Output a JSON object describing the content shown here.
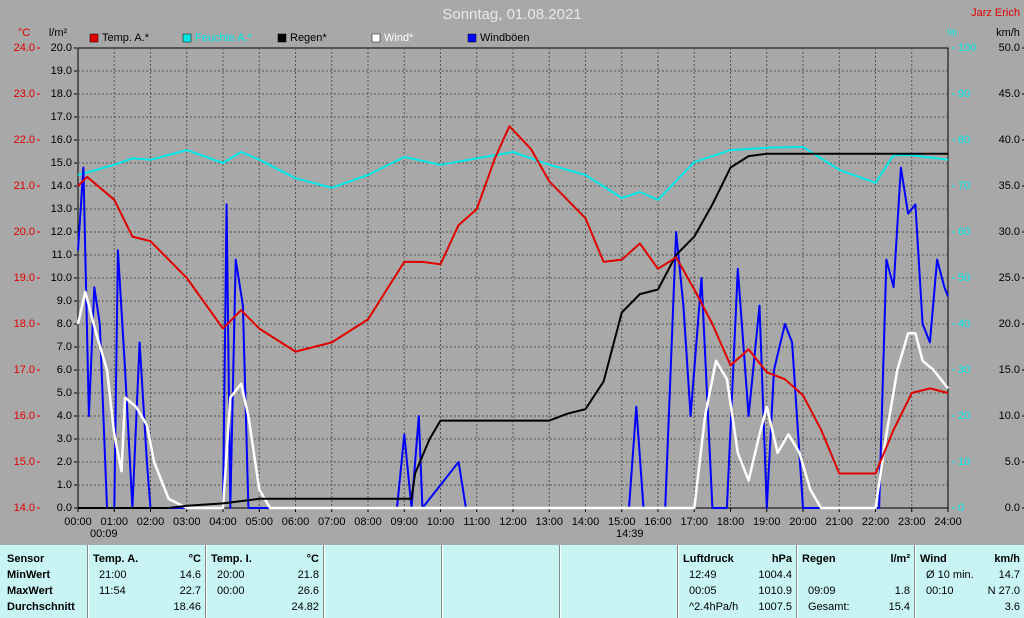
{
  "chart_data": {
    "type": "line",
    "title": "Sonntag, 01.08.2021",
    "author": "Jarz Erich",
    "y_unit": "°C",
    "y3_unit": "l/m²",
    "y2_unit": "%",
    "y4_unit": "km/h",
    "annotations": [
      "00:09",
      "14:39"
    ],
    "xlim": [
      0,
      24
    ],
    "xticks": [
      {
        "value": 0,
        "label": "00:00"
      },
      {
        "value": 1,
        "label": "01:00"
      },
      {
        "value": 2,
        "label": "02:00"
      },
      {
        "value": 3,
        "label": "03:00"
      },
      {
        "value": 4,
        "label": "04:00"
      },
      {
        "value": 5,
        "label": "05:00"
      },
      {
        "value": 6,
        "label": "06:00"
      },
      {
        "value": 7,
        "label": "07:00"
      },
      {
        "value": 8,
        "label": "08:00"
      },
      {
        "value": 9,
        "label": "09:00"
      },
      {
        "value": 10,
        "label": "10:00"
      },
      {
        "value": 11,
        "label": "11:00"
      },
      {
        "value": 12,
        "label": "12:00"
      },
      {
        "value": 13,
        "label": "13:00"
      },
      {
        "value": 14,
        "label": "14:00"
      },
      {
        "value": 15,
        "label": "15:00"
      },
      {
        "value": 16,
        "label": "16:00"
      },
      {
        "value": 17,
        "label": "17:00"
      },
      {
        "value": 18,
        "label": "18:00"
      },
      {
        "value": 19,
        "label": "19:00"
      },
      {
        "value": 20,
        "label": "20:00"
      },
      {
        "value": 21,
        "label": "21:00"
      },
      {
        "value": 22,
        "label": "22:00"
      },
      {
        "value": 23,
        "label": "23:00"
      },
      {
        "value": 24,
        "label": "24:00"
      }
    ],
    "ylim": [
      14,
      24
    ],
    "yticks": [
      {
        "value": 14,
        "label": "14.0"
      },
      {
        "value": 15,
        "label": "15.0"
      },
      {
        "value": 16,
        "label": "16.0"
      },
      {
        "value": 17,
        "label": "17.0"
      },
      {
        "value": 18,
        "label": "18.0"
      },
      {
        "value": 19,
        "label": "19.0"
      },
      {
        "value": 20,
        "label": "20.0"
      },
      {
        "value": 21,
        "label": "21.0"
      },
      {
        "value": 22,
        "label": "22.0"
      },
      {
        "value": 23,
        "label": "23.0"
      },
      {
        "value": 24,
        "label": "24.0"
      }
    ],
    "y3lim": [
      0,
      20
    ],
    "y3ticks": [
      {
        "value": 0,
        "label": "0.0"
      },
      {
        "value": 1,
        "label": "1.0"
      },
      {
        "value": 2,
        "label": "2.0"
      },
      {
        "value": 3,
        "label": "3.0"
      },
      {
        "value": 4,
        "label": "4.0"
      },
      {
        "value": 5,
        "label": "5.0"
      },
      {
        "value": 6,
        "label": "6.0"
      },
      {
        "value": 7,
        "label": "7.0"
      },
      {
        "value": 8,
        "label": "8.0"
      },
      {
        "value": 9,
        "label": "9.0"
      },
      {
        "value": 10,
        "label": "10.0"
      },
      {
        "value": 11,
        "label": "11.0"
      },
      {
        "value": 12,
        "label": "12.0"
      },
      {
        "value": 13,
        "label": "13.0"
      },
      {
        "value": 14,
        "label": "14.0"
      },
      {
        "value": 15,
        "label": "15.0"
      },
      {
        "value": 16,
        "label": "16.0"
      },
      {
        "value": 17,
        "label": "17.0"
      },
      {
        "value": 18,
        "label": "18.0"
      },
      {
        "value": 19,
        "label": "19.0"
      },
      {
        "value": 20,
        "label": "20.0"
      }
    ],
    "y2lim": [
      0,
      100
    ],
    "y2ticks": [
      0,
      10,
      20,
      30,
      40,
      50,
      60,
      70,
      80,
      90,
      100
    ],
    "y4lim": [
      0,
      50
    ],
    "y4ticks": [
      {
        "value": 0,
        "label": "0.0"
      },
      {
        "value": 5,
        "label": "5.0"
      },
      {
        "value": 10,
        "label": "10.0"
      },
      {
        "value": 15,
        "label": "15.0"
      },
      {
        "value": 20,
        "label": "20.0"
      },
      {
        "value": 25,
        "label": "25.0"
      },
      {
        "value": 30,
        "label": "30.0"
      },
      {
        "value": 35,
        "label": "35.0"
      },
      {
        "value": 40,
        "label": "40.0"
      },
      {
        "value": 45,
        "label": "45.0"
      },
      {
        "value": 50,
        "label": "50.0"
      }
    ],
    "grid": true,
    "series": [
      {
        "name": "Temp. A.*",
        "color": "#e00000",
        "axis": "y",
        "x": [
          0,
          0.25,
          1,
          1.5,
          2,
          3,
          4,
          4.5,
          5,
          6,
          7,
          8,
          9,
          9.5,
          10,
          10.5,
          11,
          11.5,
          11.9,
          12.5,
          13,
          14,
          14.5,
          15,
          15.5,
          16,
          16.5,
          17,
          17.5,
          18,
          18.5,
          19,
          19.5,
          20,
          20.5,
          21,
          22,
          22.5,
          23,
          23.5,
          24
        ],
        "values": [
          21.0,
          21.2,
          20.7,
          19.9,
          19.8,
          19.0,
          17.9,
          18.3,
          17.9,
          17.4,
          17.6,
          18.1,
          19.35,
          19.35,
          19.3,
          20.15,
          20.5,
          21.6,
          22.3,
          21.8,
          21.1,
          20.3,
          19.35,
          19.4,
          19.75,
          19.2,
          19.45,
          18.75,
          18.0,
          17.1,
          17.45,
          16.95,
          16.8,
          16.45,
          15.7,
          14.75,
          14.75,
          15.7,
          16.5,
          16.6,
          16.5
        ]
      },
      {
        "name": "Feuchte A.*",
        "color": "#00e8e8",
        "axis": "y2",
        "x": [
          0,
          1,
          1.5,
          2,
          3,
          4,
          4.5,
          5,
          6,
          7,
          8,
          9,
          10,
          11,
          12,
          13,
          14,
          15,
          15.5,
          16,
          17,
          18,
          19,
          20,
          21,
          22,
          22.5,
          23,
          24
        ],
        "values": [
          72.4,
          74.6,
          76,
          75.7,
          77.8,
          75,
          77.4,
          75.7,
          71.7,
          69.6,
          72.4,
          76.3,
          74.6,
          76,
          77.4,
          74.6,
          72.4,
          67.4,
          68.7,
          67,
          75.2,
          77.8,
          78.3,
          78.5,
          73.5,
          70.7,
          76.7,
          76.7,
          75.7
        ]
      },
      {
        "name": "Regen*",
        "color": "#000000",
        "axis": "y3",
        "x": [
          0,
          2.5,
          3,
          4,
          5,
          9.2,
          9.3,
          9.7,
          10,
          13,
          13.5,
          14,
          14.5,
          15,
          15.5,
          16,
          16.5,
          17,
          17.5,
          18,
          18.5,
          19,
          24
        ],
        "values": [
          0,
          0,
          0.1,
          0.2,
          0.4,
          0.4,
          1.5,
          3.0,
          3.8,
          3.8,
          4.1,
          4.3,
          5.5,
          8.5,
          9.3,
          9.5,
          11.0,
          11.8,
          13.2,
          14.8,
          15.3,
          15.4,
          15.4
        ]
      },
      {
        "name": "Wind*",
        "color": "#ffffff",
        "axis": "y4",
        "x": [
          0,
          0.2,
          0.5,
          0.8,
          1,
          1.2,
          1.3,
          1.6,
          1.9,
          2.1,
          2.5,
          3,
          4,
          4.2,
          4.5,
          4.7,
          5,
          5.3,
          17,
          17.3,
          17.6,
          17.9,
          18.2,
          18.5,
          18.8,
          19,
          19.3,
          19.6,
          19.9,
          20.2,
          20.5,
          22,
          22.3,
          22.6,
          22.9,
          23.1,
          23.3,
          23.6,
          24
        ],
        "values": [
          20,
          23.5,
          19,
          15,
          8,
          4,
          12,
          11,
          9,
          5,
          1,
          0,
          0,
          12,
          13.5,
          10,
          2,
          0,
          0,
          10,
          16,
          14,
          6,
          3,
          8,
          11,
          6,
          8,
          6,
          2,
          0,
          0,
          8,
          15,
          19,
          19,
          16,
          15,
          13
        ]
      },
      {
        "name": "Windböen",
        "color": "#0000ff",
        "axis": "y4",
        "x": [
          0,
          0.15,
          0.3,
          0.45,
          0.6,
          0.8,
          1,
          1.1,
          1.3,
          1.5,
          1.7,
          1.9,
          2,
          4,
          4.1,
          4.2,
          4.35,
          4.55,
          4.7,
          8.8,
          9,
          9.2,
          9.4,
          9.5,
          10.5,
          10.7,
          15.2,
          15.4,
          15.6,
          16.2,
          16.5,
          16.7,
          16.9,
          17.2,
          17.5,
          17.9,
          18.2,
          18.5,
          18.8,
          19,
          19.2,
          19.5,
          19.7,
          20,
          22.1,
          22.3,
          22.5,
          22.7,
          22.9,
          23.1,
          23.3,
          23.5,
          23.7,
          23.9,
          24
        ],
        "values": [
          28,
          37,
          10,
          24,
          20,
          0,
          0,
          28,
          15,
          0,
          18,
          5,
          0,
          0,
          33,
          0,
          27,
          22,
          0,
          0,
          8,
          0,
          10,
          0,
          5,
          0,
          0,
          11,
          0,
          0,
          30,
          22,
          10,
          25,
          0,
          0,
          26,
          10,
          22,
          0,
          15,
          20,
          18,
          0,
          0,
          27,
          24,
          37,
          32,
          33,
          20,
          18,
          27,
          24,
          23
        ]
      }
    ]
  },
  "table": {
    "header": [
      [
        "Sensor"
      ],
      [
        "Temp. A.",
        "°C"
      ],
      [
        "Temp. I.",
        "°C"
      ],
      [],
      [],
      [],
      [
        "Luftdruck",
        "hPa"
      ],
      [
        "Regen",
        "l/m²"
      ],
      [
        "Wind",
        "km/h"
      ]
    ],
    "rows": [
      [
        [
          "MinWert"
        ],
        [
          "21:00",
          "14.6"
        ],
        [
          "20:00",
          "21.8"
        ],
        [],
        [],
        [],
        [
          "12:49",
          "1004.4"
        ],
        [],
        [
          "Ø 10 min.",
          "14.7"
        ]
      ],
      [
        [
          "MaxWert"
        ],
        [
          "11:54",
          "22.7"
        ],
        [
          "00:00",
          "26.6"
        ],
        [],
        [],
        [],
        [
          "00:05",
          "1010.9"
        ],
        [
          "09:09",
          "1.8"
        ],
        [
          "00:10",
          "N 27.0"
        ]
      ],
      [
        [
          "Durchschnitt"
        ],
        [
          "18.46"
        ],
        [
          "24.82"
        ],
        [],
        [],
        [],
        [
          "^2.4hPa/h",
          "1007.5"
        ],
        [
          "Gesamt:",
          "15.4"
        ],
        [
          "3.6"
        ]
      ]
    ]
  }
}
